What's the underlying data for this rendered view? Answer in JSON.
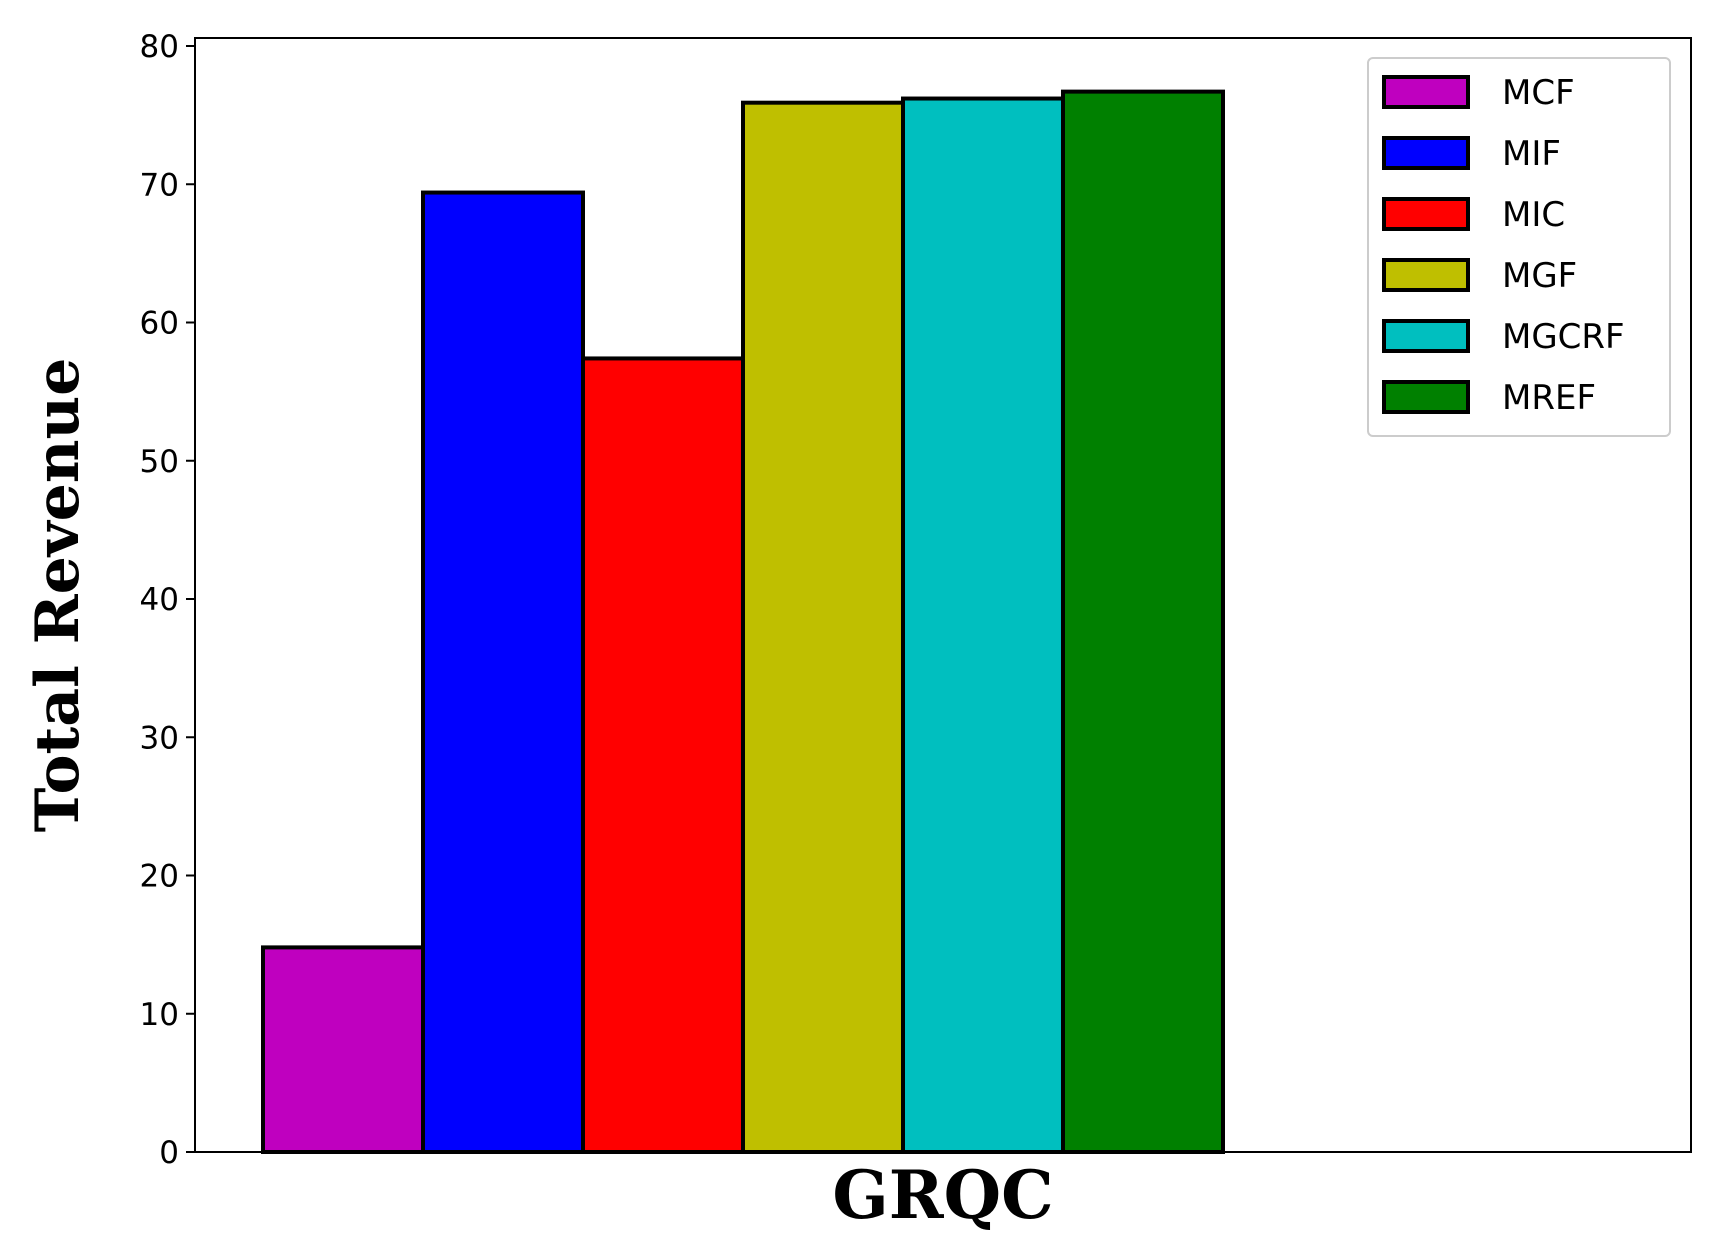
{
  "chart_data": {
    "type": "bar",
    "title": "",
    "xlabel": "GRQC",
    "ylabel": "Total Revenue",
    "ylim": [
      0,
      80
    ],
    "yticks": [
      "0",
      "10",
      "20",
      "30",
      "40",
      "50",
      "60",
      "70",
      "80"
    ],
    "categories": [
      "GRQC"
    ],
    "grid": false,
    "legend_position": "top-right",
    "series": [
      {
        "name": "MCF",
        "values": [
          14.8
        ],
        "color": "#bf00bf"
      },
      {
        "name": "MIF",
        "values": [
          69.4
        ],
        "color": "#0000ff"
      },
      {
        "name": "MIC",
        "values": [
          57.4
        ],
        "color": "#ff0000"
      },
      {
        "name": "MGF",
        "values": [
          75.9
        ],
        "color": "#bfbf00"
      },
      {
        "name": "MGCRF",
        "values": [
          76.2
        ],
        "color": "#00bfbf"
      },
      {
        "name": "MREF",
        "values": [
          76.7
        ],
        "color": "#008000"
      }
    ]
  }
}
